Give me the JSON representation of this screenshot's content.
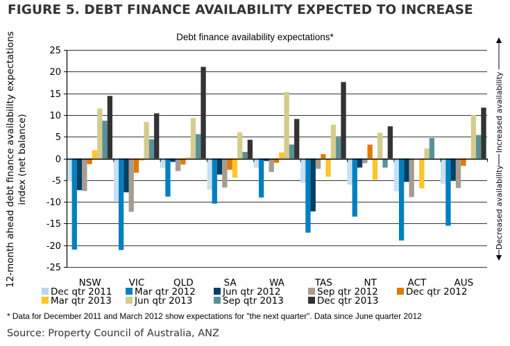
{
  "figure_title": "FIGURE 5. DEBT FINANCE AVAILABILITY EXPECTED TO INCREASE",
  "note": "* Data for December 2011 and March 2012 show expectations for \"the next quarter\". Data since June quarter 2012",
  "source": "Source: Property Council of Australia, ANZ",
  "side_labels": {
    "up": "Increased availability",
    "down": "Decreased availability"
  },
  "chart_data": {
    "type": "bar",
    "title": "Debt finance availability expectations*",
    "xlabel": "",
    "ylabel": [
      "12-month ahead  debt finance availability expectations",
      "index (net balance)"
    ],
    "ylim": [
      -25,
      25
    ],
    "yticks": [
      25,
      20,
      15,
      10,
      5,
      0,
      -5,
      -10,
      -15,
      -20,
      -25
    ],
    "grid": true,
    "legend_position": "bottom",
    "categories": [
      "NSW",
      "VIC",
      "QLD",
      "SA",
      "WA",
      "TAS",
      "NT",
      "ACT",
      "AUS"
    ],
    "series": [
      {
        "name": "Dec qtr 2011",
        "color": "#bcd9f2",
        "pattern": "dotted",
        "values": [
          -5.3,
          -9.8,
          -2.2,
          -7.2,
          -2.1,
          -5.6,
          -6.1,
          -7.6,
          -5.8
        ]
      },
      {
        "name": "Mar qtr 2012",
        "color": "#0080c0",
        "values": [
          -21.0,
          -21.1,
          -8.8,
          -10.4,
          -9.0,
          -17.1,
          -13.4,
          -18.9,
          -15.5
        ]
      },
      {
        "name": "Jun qtr 2012",
        "color": "#003f66",
        "values": [
          -7.3,
          -7.8,
          -0.8,
          -3.7,
          -0.6,
          -12.2,
          -2.1,
          -5.4,
          -5.0
        ]
      },
      {
        "name": "Sep qtr 2012",
        "color": "#a89c90",
        "values": [
          -7.5,
          -12.3,
          -2.9,
          -6.7,
          -3.1,
          -2.4,
          -1.1,
          -8.9,
          -6.8
        ]
      },
      {
        "name": "Dec qtr 2012",
        "color": "#e07b00",
        "values": [
          -1.3,
          -3.3,
          -1.4,
          -2.6,
          -1.0,
          1.0,
          3.2,
          0.0,
          -1.7
        ]
      },
      {
        "name": "Mar qtr 2013",
        "color": "#ffc428",
        "values": [
          1.9,
          -0.5,
          0.2,
          -4.4,
          1.4,
          -4.2,
          -4.9,
          -6.9,
          -0.2
        ]
      },
      {
        "name": "Jun qtr 2013",
        "color": "#d4cc8c",
        "values": [
          11.5,
          8.4,
          9.3,
          6.0,
          15.3,
          7.8,
          5.9,
          2.3,
          10.0
        ]
      },
      {
        "name": "Sep qtr 2013",
        "color": "#5a9098",
        "values": [
          8.7,
          4.4,
          5.6,
          1.5,
          3.2,
          4.8,
          -2.1,
          4.7,
          5.4
        ]
      },
      {
        "name": "Dec qtr 2013",
        "color": "#333333",
        "values": [
          14.4,
          10.4,
          21.1,
          4.3,
          9.1,
          17.6,
          7.4,
          0.0,
          11.7
        ]
      }
    ]
  }
}
